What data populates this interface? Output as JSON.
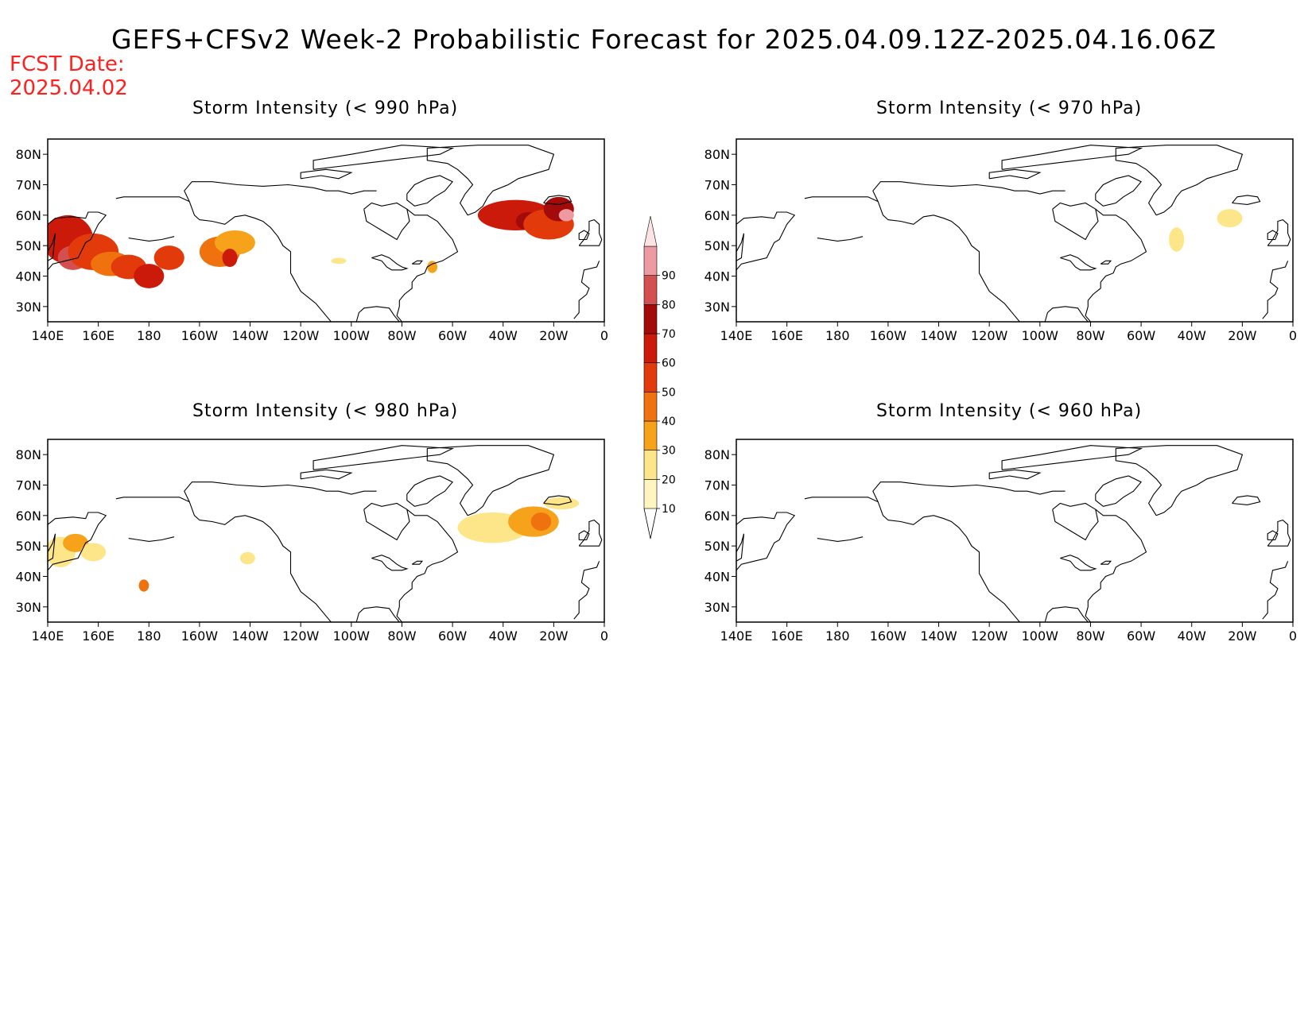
{
  "title": "GEFS+CFSv2 Week-2 Probabilistic Forecast for 2025.04.09.12Z-2025.04.16.06Z",
  "fcst_date": {
    "label": "FCST Date:",
    "value": "2025.04.02"
  },
  "lat_labels": [
    "80N",
    "70N",
    "60N",
    "50N",
    "40N",
    "30N"
  ],
  "lon_labels": [
    "140E",
    "160E",
    "180",
    "160W",
    "140W",
    "120W",
    "100W",
    "80W",
    "60W",
    "40W",
    "20W",
    "0"
  ],
  "colorbar": {
    "levels": [
      10,
      20,
      30,
      40,
      50,
      60,
      70,
      80,
      90
    ],
    "labels": [
      "10",
      "20",
      "30",
      "40",
      "50",
      "60",
      "70",
      "80",
      "90"
    ],
    "colors": [
      "#fff5c0",
      "#fde68a",
      "#f6a21a",
      "#f0720f",
      "#e33a0b",
      "#cc1a0a",
      "#a30a0a",
      "#d45050",
      "#ee9aa2",
      "#fce4e4"
    ]
  },
  "panels": [
    {
      "id": "p990",
      "title": "Storm Intensity (< 990 hPa)",
      "blobs": [
        {
          "lon": 148,
          "lat": 52,
          "rlon": 10,
          "rlat": 8,
          "level": 50
        },
        {
          "lon": 150,
          "lat": 46,
          "rlon": 6,
          "rlat": 4,
          "level": 70
        },
        {
          "lon": 158,
          "lat": 48,
          "rlon": 10,
          "rlat": 6,
          "level": 40
        },
        {
          "lon": 165,
          "lat": 44,
          "rlon": 8,
          "rlat": 4,
          "level": 30
        },
        {
          "lon": 172,
          "lat": 43,
          "rlon": 7,
          "rlat": 4,
          "level": 40
        },
        {
          "lon": 180,
          "lat": 40,
          "rlon": 6,
          "rlat": 4,
          "level": 50
        },
        {
          "lon": 188,
          "lat": 46,
          "rlon": 6,
          "rlat": 4,
          "level": 40
        },
        {
          "lon": 208,
          "lat": 48,
          "rlon": 8,
          "rlat": 5,
          "level": 30
        },
        {
          "lon": 214,
          "lat": 51,
          "rlon": 8,
          "rlat": 4,
          "level": 20
        },
        {
          "lon": 212,
          "lat": 46,
          "rlon": 3,
          "rlat": 3,
          "level": 50
        },
        {
          "lon": 325,
          "lat": 60,
          "rlon": 15,
          "rlat": 5,
          "level": 50
        },
        {
          "lon": 330,
          "lat": 58,
          "rlon": 5,
          "rlat": 3,
          "level": 60
        },
        {
          "lon": 338,
          "lat": 57,
          "rlon": 10,
          "rlat": 5,
          "level": 40
        },
        {
          "lon": 342,
          "lat": 62,
          "rlon": 6,
          "rlat": 4,
          "level": 60
        },
        {
          "lon": 345,
          "lat": 60,
          "rlon": 3,
          "rlat": 2,
          "level": 80
        },
        {
          "lon": 255,
          "lat": 45,
          "rlon": 3,
          "rlat": 1,
          "level": 10
        },
        {
          "lon": 292,
          "lat": 43,
          "rlon": 2,
          "rlat": 2,
          "level": 20
        }
      ]
    },
    {
      "id": "p970",
      "title": "Storm Intensity (< 970 hPa)",
      "blobs": [
        {
          "lon": 314,
          "lat": 52,
          "rlon": 3,
          "rlat": 4,
          "level": 10
        },
        {
          "lon": 335,
          "lat": 59,
          "rlon": 5,
          "rlat": 3,
          "level": 10
        }
      ]
    },
    {
      "id": "p980",
      "title": "Storm Intensity (< 980 hPa)",
      "blobs": [
        {
          "lon": 145,
          "lat": 48,
          "rlon": 6,
          "rlat": 5,
          "level": 10
        },
        {
          "lon": 151,
          "lat": 51,
          "rlon": 5,
          "rlat": 3,
          "level": 20
        },
        {
          "lon": 158,
          "lat": 48,
          "rlon": 5,
          "rlat": 3,
          "level": 10
        },
        {
          "lon": 178,
          "lat": 37,
          "rlon": 2,
          "rlat": 2,
          "level": 30
        },
        {
          "lon": 219,
          "lat": 46,
          "rlon": 3,
          "rlat": 2,
          "level": 10
        },
        {
          "lon": 316,
          "lat": 56,
          "rlon": 14,
          "rlat": 5,
          "level": 10
        },
        {
          "lon": 332,
          "lat": 58,
          "rlon": 10,
          "rlat": 5,
          "level": 20
        },
        {
          "lon": 335,
          "lat": 58,
          "rlon": 4,
          "rlat": 3,
          "level": 30
        },
        {
          "lon": 343,
          "lat": 64,
          "rlon": 7,
          "rlat": 2,
          "level": 10
        }
      ]
    },
    {
      "id": "p960",
      "title": "Storm Intensity (< 960 hPa)",
      "blobs": []
    }
  ]
}
